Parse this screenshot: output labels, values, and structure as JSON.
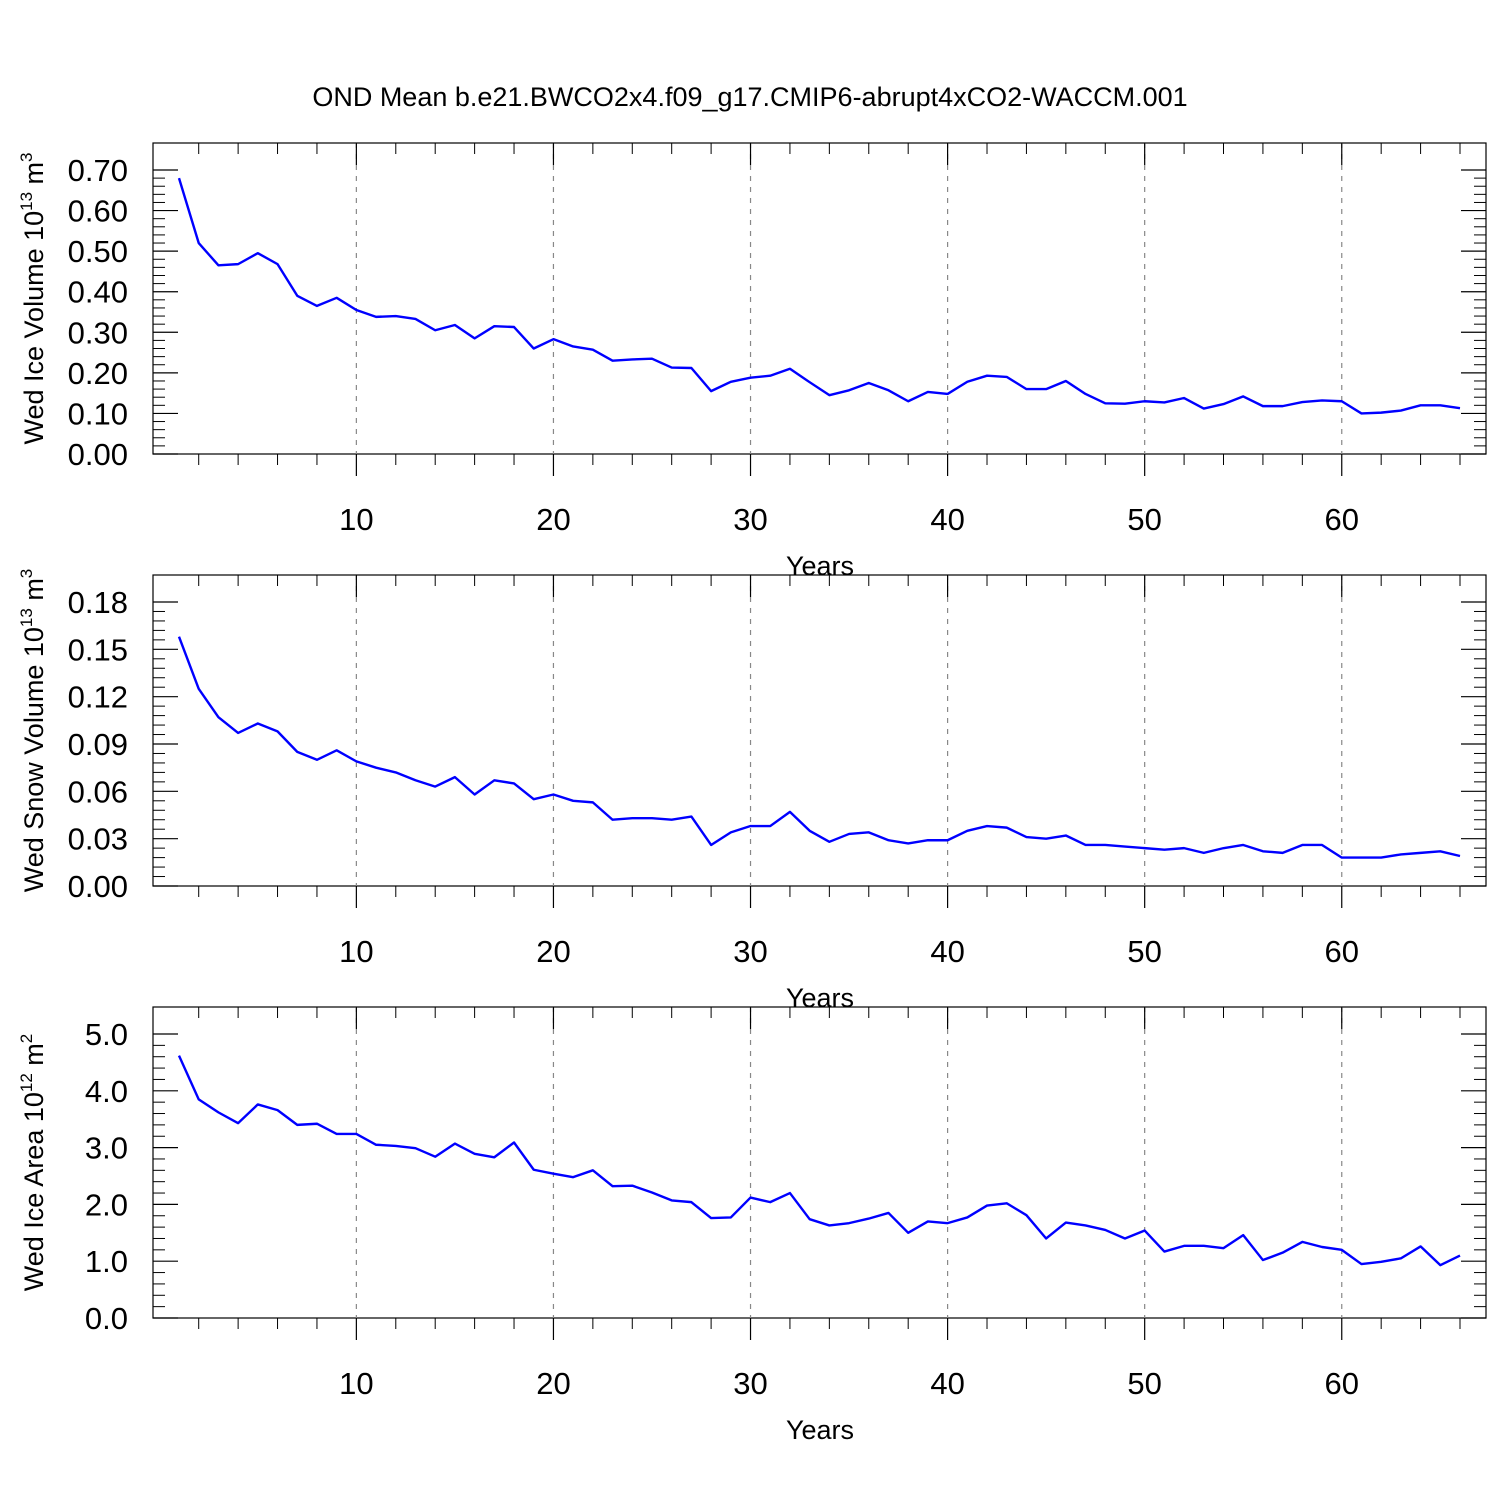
{
  "figure": {
    "title": "OND Mean b.e21.BWCO2x4.f09_g17.CMIP6-abrupt4xCO2-WACCM.001"
  },
  "colors": {
    "line": "#0000ff",
    "axis": "#000000",
    "grid": "#888888"
  },
  "chart_data": [
    {
      "type": "line",
      "ylabel_main": "Wed Ice Volume 10",
      "ylabel_exp": "13",
      "ylabel_unit": " m",
      "ylabel_unit_exp": "3",
      "xlabel": "Years",
      "xlim": [
        1,
        66
      ],
      "ylim": [
        0,
        0.7
      ],
      "yticks": [
        0,
        0.1,
        0.2,
        0.3,
        0.4,
        0.5,
        0.6,
        0.7
      ],
      "ytick_labels": [
        "0.00",
        "0.10",
        "0.20",
        "0.30",
        "0.40",
        "0.50",
        "0.60",
        "0.70"
      ],
      "xticks": [
        10,
        20,
        30,
        40,
        50,
        60
      ],
      "xtick_labels": [
        "10",
        "20",
        "30",
        "40",
        "50",
        "60"
      ],
      "grid": "vertical dashed at x ticks",
      "series": [
        {
          "values": [
            0.68,
            0.52,
            0.465,
            0.468,
            0.495,
            0.468,
            0.39,
            0.365,
            0.385,
            0.355,
            0.338,
            0.34,
            0.333,
            0.305,
            0.318,
            0.285,
            0.315,
            0.313,
            0.26,
            0.283,
            0.265,
            0.257,
            0.23,
            0.233,
            0.235,
            0.213,
            0.212,
            0.155,
            0.178,
            0.188,
            0.193,
            0.21,
            0.177,
            0.145,
            0.157,
            0.175,
            0.157,
            0.13,
            0.153,
            0.148,
            0.178,
            0.193,
            0.19,
            0.16,
            0.16,
            0.18,
            0.148,
            0.125,
            0.124,
            0.13,
            0.127,
            0.138,
            0.112,
            0.123,
            0.142,
            0.118,
            0.118,
            0.128,
            0.132,
            0.13,
            0.1,
            0.102,
            0.107,
            0.12,
            0.12,
            0.113
          ]
        }
      ]
    },
    {
      "type": "line",
      "ylabel_main": "Wed Snow Volume 10",
      "ylabel_exp": "13",
      "ylabel_unit": " m",
      "ylabel_unit_exp": "3",
      "xlabel": "Years",
      "xlim": [
        1,
        66
      ],
      "ylim": [
        0,
        0.18
      ],
      "yticks": [
        0,
        0.03,
        0.06,
        0.09,
        0.12,
        0.15,
        0.18
      ],
      "ytick_labels": [
        "0.00",
        "0.03",
        "0.06",
        "0.09",
        "0.12",
        "0.15",
        "0.18"
      ],
      "xticks": [
        10,
        20,
        30,
        40,
        50,
        60
      ],
      "xtick_labels": [
        "10",
        "20",
        "30",
        "40",
        "50",
        "60"
      ],
      "grid": "vertical dashed at x ticks",
      "series": [
        {
          "values": [
            0.158,
            0.125,
            0.107,
            0.097,
            0.103,
            0.098,
            0.085,
            0.08,
            0.086,
            0.079,
            0.075,
            0.072,
            0.067,
            0.063,
            0.069,
            0.058,
            0.067,
            0.065,
            0.055,
            0.058,
            0.054,
            0.053,
            0.042,
            0.043,
            0.043,
            0.042,
            0.044,
            0.026,
            0.034,
            0.038,
            0.038,
            0.047,
            0.035,
            0.028,
            0.033,
            0.034,
            0.029,
            0.027,
            0.029,
            0.029,
            0.035,
            0.038,
            0.037,
            0.031,
            0.03,
            0.032,
            0.026,
            0.026,
            0.025,
            0.024,
            0.023,
            0.024,
            0.021,
            0.024,
            0.026,
            0.022,
            0.021,
            0.026,
            0.026,
            0.018,
            0.018,
            0.018,
            0.02,
            0.021,
            0.022,
            0.019
          ]
        }
      ]
    },
    {
      "type": "line",
      "ylabel_main": "Wed Ice Area 10",
      "ylabel_exp": "12",
      "ylabel_unit": " m",
      "ylabel_unit_exp": "2",
      "xlabel": "Years",
      "xlim": [
        1,
        66
      ],
      "ylim": [
        0,
        5
      ],
      "yticks": [
        0,
        1,
        2,
        3,
        4,
        5
      ],
      "ytick_labels": [
        "0.0",
        "1.0",
        "2.0",
        "3.0",
        "4.0",
        "5.0"
      ],
      "xticks": [
        10,
        20,
        30,
        40,
        50,
        60
      ],
      "xtick_labels": [
        "10",
        "20",
        "30",
        "40",
        "50",
        "60"
      ],
      "grid": "vertical dashed at x ticks",
      "series": [
        {
          "values": [
            4.62,
            3.85,
            3.62,
            3.43,
            3.76,
            3.66,
            3.4,
            3.42,
            3.24,
            3.24,
            3.05,
            3.03,
            2.99,
            2.84,
            3.07,
            2.89,
            2.83,
            3.09,
            2.61,
            2.54,
            2.48,
            2.6,
            2.32,
            2.33,
            2.21,
            2.07,
            2.04,
            1.76,
            1.77,
            2.12,
            2.04,
            2.2,
            1.74,
            1.63,
            1.67,
            1.75,
            1.85,
            1.5,
            1.7,
            1.67,
            1.77,
            1.98,
            2.02,
            1.81,
            1.4,
            1.68,
            1.63,
            1.55,
            1.4,
            1.54,
            1.17,
            1.27,
            1.27,
            1.23,
            1.46,
            1.02,
            1.15,
            1.34,
            1.25,
            1.2,
            0.95,
            0.99,
            1.05,
            1.26,
            0.93,
            1.1
          ]
        }
      ]
    }
  ]
}
